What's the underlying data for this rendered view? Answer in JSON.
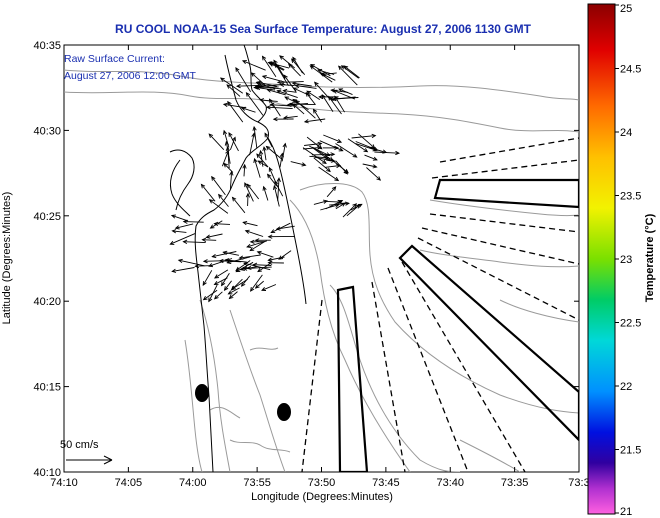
{
  "title": "RU COOL  NOAA-15  Sea Surface Temperature:  August 27, 2006 1130 GMT",
  "annotation": {
    "line1": "Raw Surface Current:",
    "line2": "August 27, 2006 12:00 GMT"
  },
  "scale_label": "50 cm/s",
  "axes": {
    "xlabel": "Longitude (Degrees:Minutes)",
    "ylabel": "Latitude (Degrees:Minutes)",
    "x_ticks": [
      "74:10",
      "74:05",
      "74:00",
      "73:55",
      "73:50",
      "73:45",
      "73:40",
      "73:35",
      "73:3"
    ],
    "y_ticks": [
      "40:35",
      "40:30",
      "40:25",
      "40:20",
      "40:15",
      "40:10"
    ]
  },
  "colorbar": {
    "label": "Temperature (°C)",
    "ticks": [
      "25",
      "24.5",
      "24",
      "23.5",
      "23",
      "22.5",
      "22",
      "21.5",
      "21"
    ]
  },
  "colors": {
    "title": "#1a2fb0",
    "coast": "#000000",
    "bathymetry": "#9a9a9a",
    "vectors": "#000000"
  }
}
